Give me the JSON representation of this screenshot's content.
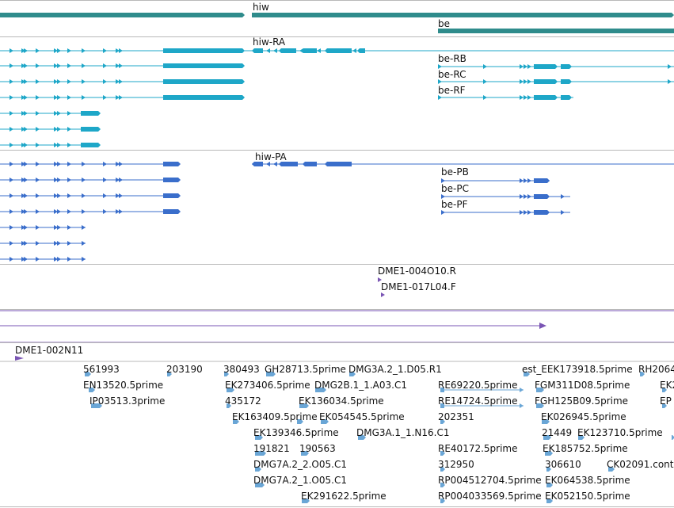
{
  "colors": {
    "gene": "#2f8c8c",
    "mrna": "#1ea7c8",
    "protein": "#3a6ecb",
    "clone": "#7a55b4",
    "est": "#6aa6d6",
    "divider": "#b9b9b9"
  },
  "genes": [
    {
      "name": "hiw"
    },
    {
      "name": "be"
    }
  ],
  "mrna_labels": [
    "hiw-RA",
    "be-RB",
    "be-RC",
    "be-RF"
  ],
  "protein_labels": [
    "hiw-PA",
    "be-PB",
    "be-PC",
    "be-PF"
  ],
  "clone_labels": [
    "DME1-004O10.R",
    "DME1-017L04.F",
    "DME1-002N11"
  ],
  "est_labels": [
    "561993",
    "203190",
    "380493",
    "GH28713.5prime",
    "DMG3A.2_1.D05.R1",
    "est_EEK173918.5prime",
    "RH2064",
    "EN13520.5prime",
    "EK273406.5prime",
    "DMG2B.1_1.A03.C1",
    "RE69220.5prime",
    "FGM311D08.5prime",
    "EK2",
    "IP03513.3prime",
    "435172",
    "EK136034.5prime",
    "RE14724.5prime",
    "FGH125B09.5prime",
    "EP",
    "EK163409.5prime",
    "EK054545.5prime",
    "202351",
    "EK026945.5prime",
    "EK139346.5prime",
    "DMG3A.1_1.N16.C1",
    "21449",
    "EK123710.5prime",
    "191821",
    "190563",
    "RE40172.5prime",
    "EK185752.5prime",
    "DMG7A.2_2.O05.C1",
    "312950",
    "306610",
    "CK02091.cont",
    "DMG7A.2_1.O05.C1",
    "RP004512704.5prime",
    "EK064538.5prime",
    "EK291622.5prime",
    "RP004033569.5prime",
    "EK052150.5prime"
  ]
}
